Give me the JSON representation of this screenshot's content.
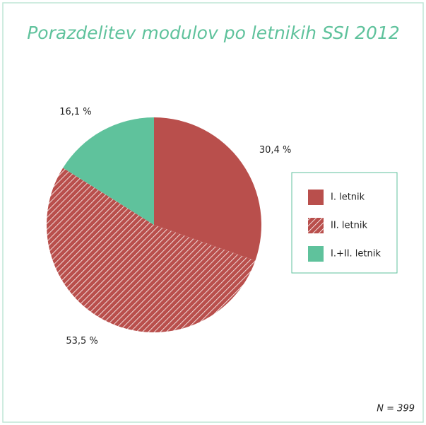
{
  "chart_data": {
    "type": "pie",
    "title": "Porazdelitev modulov po letnikih SSI 2012",
    "categories": [
      "I. letnik",
      "II. letnik",
      "I.+II. letnik"
    ],
    "values": [
      30.4,
      53.5,
      16.1
    ],
    "value_labels": [
      "30,4 %",
      "53,5 %",
      "16,1 %"
    ],
    "colors": [
      "#b94f4c",
      "#b94f4c",
      "#5fc29c"
    ],
    "hatched": [
      false,
      true,
      false
    ],
    "annotation": "N = 399"
  }
}
